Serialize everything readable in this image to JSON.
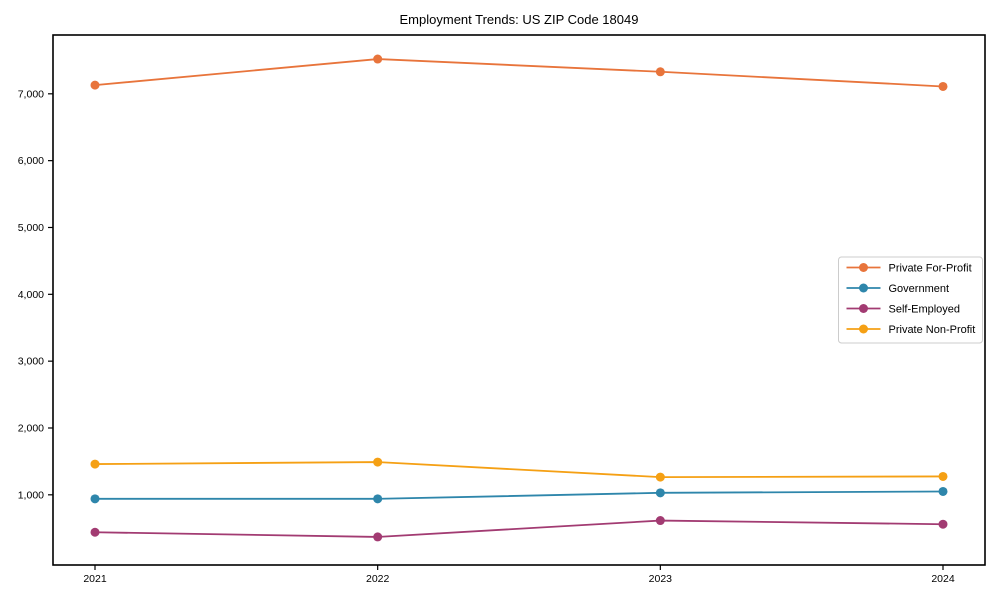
{
  "chart_data": {
    "type": "line",
    "title": "Employment Trends: US ZIP Code 18049",
    "xlabel": "",
    "ylabel": "",
    "x": [
      "2021",
      "2022",
      "2023",
      "2024"
    ],
    "series": [
      {
        "name": "Private For-Profit",
        "color": "#e8743b",
        "values": [
          7130,
          7520,
          7330,
          7110
        ]
      },
      {
        "name": "Government",
        "color": "#2e86ab",
        "values": [
          940,
          940,
          1030,
          1050
        ]
      },
      {
        "name": "Self-Employed",
        "color": "#a23b72",
        "values": [
          440,
          370,
          615,
          560
        ]
      },
      {
        "name": "Private Non-Profit",
        "color": "#f5a014",
        "values": [
          1460,
          1490,
          1265,
          1275
        ]
      }
    ],
    "yticks": [
      {
        "value": 1000,
        "label": "1,000"
      },
      {
        "value": 2000,
        "label": "2,000"
      },
      {
        "value": 3000,
        "label": "3,000"
      },
      {
        "value": 4000,
        "label": "4,000"
      },
      {
        "value": 5000,
        "label": "5,000"
      },
      {
        "value": 6000,
        "label": "6,000"
      },
      {
        "value": 7000,
        "label": "7,000"
      }
    ],
    "ylim": [
      -50,
      7880
    ],
    "grid": false,
    "legend_position": "middle-right",
    "axis_color": "#000000",
    "legend_border_color": "#cccccc",
    "background": "#ffffff"
  }
}
